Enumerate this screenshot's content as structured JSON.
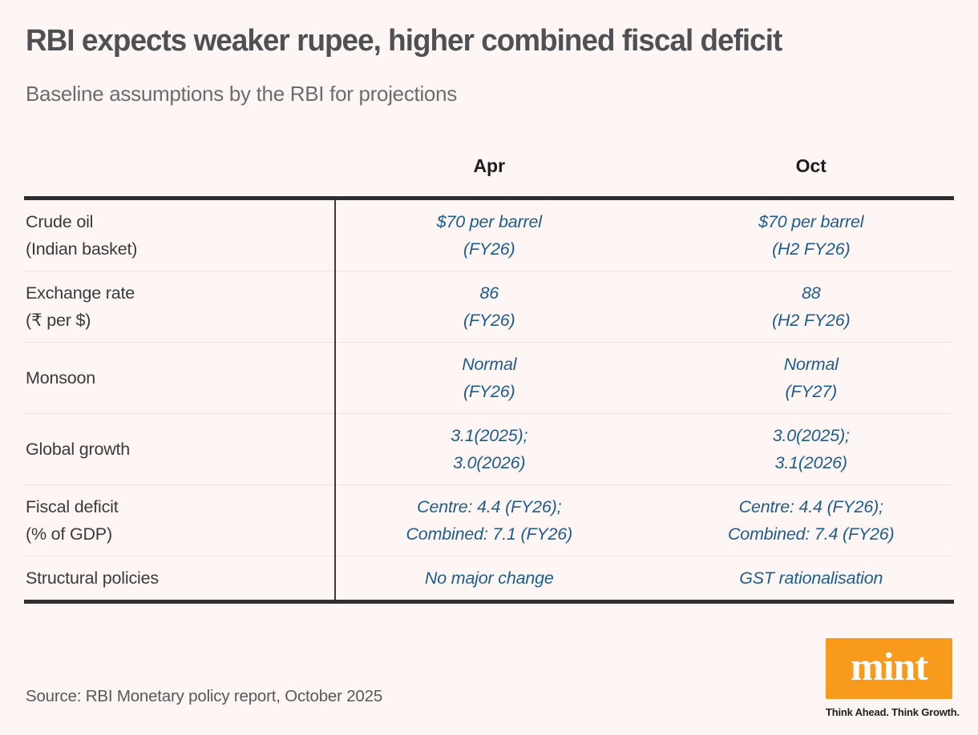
{
  "chart_data": {
    "type": "table",
    "title": "RBI expects weaker rupee, higher combined fiscal deficit",
    "subtitle": "Baseline assumptions by the RBI for projections",
    "source": "Source: RBI Monetary policy report, October 2025",
    "columns": [
      "Apr",
      "Oct"
    ],
    "rows": [
      {
        "label": [
          "Crude oil",
          "(Indian basket)"
        ],
        "apr": [
          "$70 per barrel",
          "(FY26)"
        ],
        "oct": [
          "$70 per barrel",
          "(H2 FY26)"
        ]
      },
      {
        "label": [
          "Exchange rate",
          "(₹ per $)"
        ],
        "apr": [
          "86",
          "(FY26)"
        ],
        "oct": [
          "88",
          "(H2 FY26)"
        ]
      },
      {
        "label": [
          "Monsoon"
        ],
        "apr": [
          "Normal",
          "(FY26)"
        ],
        "oct": [
          "Normal",
          "(FY27)"
        ]
      },
      {
        "label": [
          "Global growth"
        ],
        "apr": [
          "3.1(2025);",
          "3.0(2026)"
        ],
        "oct": [
          "3.0(2025);",
          "3.1(2026)"
        ]
      },
      {
        "label": [
          "Fiscal deficit",
          "(% of GDP)"
        ],
        "apr": [
          "Centre: 4.4 (FY26);",
          "Combined: 7.1 (FY26)"
        ],
        "oct": [
          "Centre: 4.4 (FY26);",
          "Combined: 7.4 (FY26)"
        ]
      },
      {
        "label": [
          "Structural policies"
        ],
        "apr": [
          "No major change"
        ],
        "oct": [
          "GST rationalisation"
        ]
      }
    ]
  },
  "brand": {
    "logo_text": "mint",
    "tagline": "Think Ahead. Think Growth.",
    "logo_bg": "#F89B1C",
    "logo_fg": "#FFFFFF"
  },
  "colors": {
    "background": "#FDF6F4",
    "title": "#4F5054",
    "subtitle": "#6B6C70",
    "label": "#3A3A3C",
    "value_blue": "#1E5C8E",
    "border_dark": "#2E2E30",
    "border_light": "#EAE3E0"
  }
}
